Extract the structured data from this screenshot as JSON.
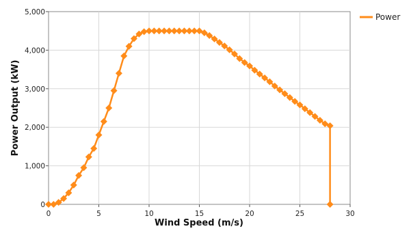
{
  "chart_data": {
    "type": "line",
    "xlabel": "Wind Speed (m/s)",
    "ylabel": "Power Output (kW)",
    "xlim": [
      0,
      30
    ],
    "ylim": [
      0,
      5000
    ],
    "x_ticks": [
      0,
      5,
      10,
      15,
      20,
      25,
      30
    ],
    "y_ticks": [
      0,
      1000,
      2000,
      3000,
      4000,
      5000
    ],
    "x_tick_labels": [
      "0",
      "5",
      "10",
      "15",
      "20",
      "25",
      "30"
    ],
    "y_tick_labels": [
      "0",
      "1,000",
      "2,000",
      "3,000",
      "4,000",
      "5,000"
    ],
    "grid": true,
    "legend_position": "top-right",
    "marker": "diamond",
    "series": [
      {
        "name": "Power",
        "color": "#FF8C1A",
        "x": [
          0,
          0.5,
          1,
          1.5,
          2,
          2.5,
          3,
          3.5,
          4,
          4.5,
          5,
          5.5,
          6,
          6.5,
          7,
          7.5,
          8,
          8.5,
          9,
          9.5,
          10,
          10.5,
          11,
          11.5,
          12,
          12.5,
          13,
          13.5,
          14,
          14.5,
          15,
          15.5,
          16,
          16.5,
          17,
          17.5,
          18,
          18.5,
          19,
          19.5,
          20,
          20.5,
          21,
          21.5,
          22,
          22.5,
          23,
          23.5,
          24,
          24.5,
          25,
          25.5,
          26,
          26.5,
          27,
          27.5,
          28,
          28
        ],
        "y": [
          0,
          0,
          50,
          150,
          300,
          500,
          750,
          950,
          1230,
          1450,
          1800,
          2150,
          2500,
          2950,
          3400,
          3850,
          4100,
          4300,
          4420,
          4480,
          4500,
          4500,
          4500,
          4500,
          4500,
          4500,
          4500,
          4500,
          4500,
          4500,
          4500,
          4450,
          4380,
          4290,
          4200,
          4110,
          4010,
          3900,
          3780,
          3680,
          3590,
          3480,
          3380,
          3280,
          3180,
          3070,
          2970,
          2870,
          2770,
          2670,
          2580,
          2480,
          2380,
          2280,
          2180,
          2090,
          2040,
          0
        ]
      }
    ]
  }
}
